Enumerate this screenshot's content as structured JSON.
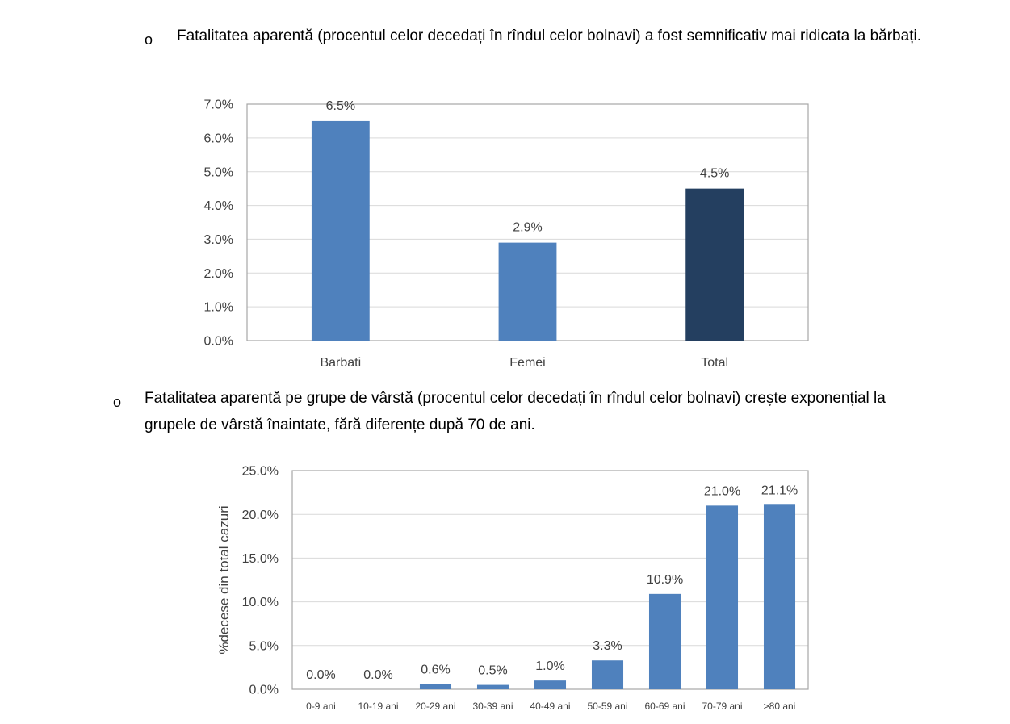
{
  "bullets": [
    {
      "marker": "o",
      "text": "Fatalitatea aparentă (procentul celor decedați în rîndul celor bolnavi) a fost semnificativ mai ridicata la bărbați."
    },
    {
      "marker": "o",
      "text": "Fatalitatea aparentă pe grupe de vârstă (procentul celor decedați în rîndul celor bolnavi) crește exponențial la grupele de vârstă înaintate, fără diferențe după 70 de ani."
    }
  ],
  "chart_data": [
    {
      "type": "bar",
      "title": "",
      "xlabel": "",
      "ylabel": "",
      "categories": [
        "Barbati",
        "Femei",
        "Total"
      ],
      "values": [
        6.5,
        2.9,
        4.5
      ],
      "value_labels": [
        "6.5%",
        "2.9%",
        "4.5%"
      ],
      "bar_colors": [
        "#4f81bd",
        "#4f81bd",
        "#243f60"
      ],
      "ylim": [
        0,
        7
      ],
      "yticks": [
        0,
        1,
        2,
        3,
        4,
        5,
        6,
        7
      ],
      "ytick_labels": [
        "0.0%",
        "1.0%",
        "2.0%",
        "3.0%",
        "4.0%",
        "5.0%",
        "6.0%",
        "7.0%"
      ],
      "grid": true,
      "legend": "none"
    },
    {
      "type": "bar",
      "title": "",
      "xlabel": "",
      "ylabel": "%decese din total cazuri",
      "categories": [
        "0-9 ani",
        "10-19 ani",
        "20-29 ani",
        "30-39 ani",
        "40-49 ani",
        "50-59 ani",
        "60-69 ani",
        "70-79 ani",
        ">80 ani"
      ],
      "values": [
        0.0,
        0.0,
        0.6,
        0.5,
        1.0,
        3.3,
        10.9,
        21.0,
        21.1
      ],
      "value_labels": [
        "0.0%",
        "0.0%",
        "0.6%",
        "0.5%",
        "1.0%",
        "3.3%",
        "10.9%",
        "21.0%",
        "21.1%"
      ],
      "bar_colors": [
        "#4f81bd"
      ],
      "ylim": [
        0,
        25
      ],
      "yticks": [
        0,
        5,
        10,
        15,
        20,
        25
      ],
      "ytick_labels": [
        "0.0%",
        "5.0%",
        "10.0%",
        "15.0%",
        "20.0%",
        "25.0%"
      ],
      "grid": true,
      "legend": "none"
    }
  ]
}
